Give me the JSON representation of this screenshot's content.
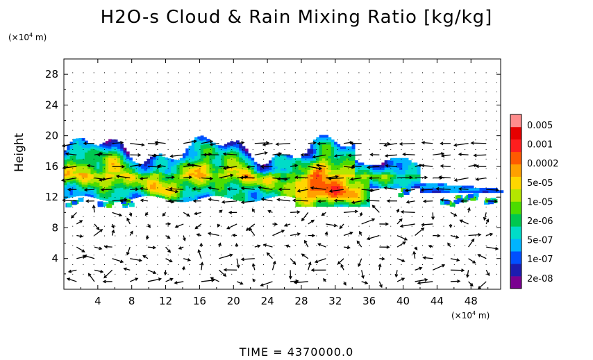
{
  "chart_data": {
    "type": "heatmap",
    "title": "H2O-s Cloud & Rain Mixing Ratio [kg/kg]",
    "ylabel": "Height",
    "x_unit": "(×10⁴ m)",
    "y_unit": "(×10⁴ m)",
    "xlim": [
      0,
      51.5
    ],
    "ylim": [
      0,
      30
    ],
    "x_ticks": [
      "4",
      "8",
      "12",
      "16",
      "20",
      "24",
      "28",
      "32",
      "36",
      "40",
      "44",
      "48"
    ],
    "y_ticks": [
      "4",
      "8",
      "12",
      "16",
      "20",
      "24",
      "28"
    ],
    "colorbar": {
      "labels": [
        "0.005",
        "0.001",
        "0.0002",
        "5e-05",
        "1e-05",
        "2e-06",
        "5e-07",
        "1e-07",
        "2e-08"
      ],
      "colors": [
        "#7a0090",
        "#1c1cb0",
        "#0050ff",
        "#00b4ff",
        "#00dcc8",
        "#00c850",
        "#4cdc00",
        "#b4e600",
        "#ffd700",
        "#ffa000",
        "#ff5a00",
        "#ff1e1e",
        "#e60000",
        "#ff8c8c"
      ]
    },
    "cloud_layer": {
      "base_height": 10.5,
      "top_height": 19.5,
      "extent_x": [
        0,
        51.5
      ],
      "max_core": {
        "x": 30,
        "y": 12
      }
    },
    "vectors": "wind field arrows shown throughout domain",
    "time_label": "TIME  =  4370000.0"
  }
}
